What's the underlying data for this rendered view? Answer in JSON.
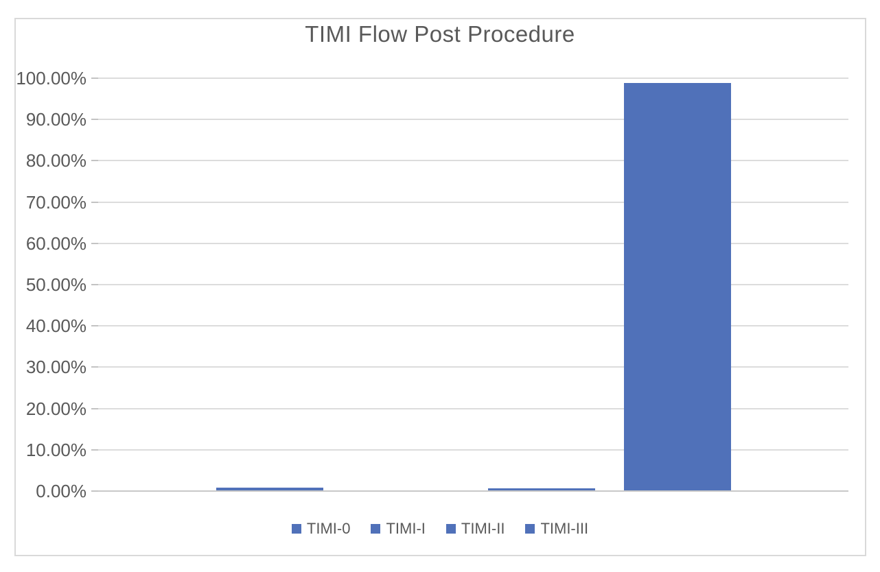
{
  "chart_data": {
    "type": "bar",
    "title": "TIMI Flow Post Procedure",
    "categories": [
      "TIMI-0",
      "TIMI-I",
      "TIMI-II",
      "TIMI-III"
    ],
    "values": [
      0.7,
      0.0,
      0.5,
      98.6
    ],
    "value_unit": "percent",
    "xlabel": "",
    "ylabel": "",
    "ylim": [
      0,
      100
    ],
    "y_tick_step": 10,
    "y_ticks": [
      {
        "value": 100,
        "label": "100.00%"
      },
      {
        "value": 90,
        "label": "90.00%"
      },
      {
        "value": 80,
        "label": "80.00%"
      },
      {
        "value": 70,
        "label": "70.00%"
      },
      {
        "value": 60,
        "label": "60.00%"
      },
      {
        "value": 50,
        "label": "50.00%"
      },
      {
        "value": 40,
        "label": "40.00%"
      },
      {
        "value": 30,
        "label": "30.00%"
      },
      {
        "value": 20,
        "label": "20.00%"
      },
      {
        "value": 10,
        "label": "10.00%"
      },
      {
        "value": 0,
        "label": "0.00%"
      }
    ],
    "grid": true,
    "legend_position": "bottom",
    "legend_labels": [
      "TIMI-0",
      "TIMI-I",
      "TIMI-II",
      "TIMI-III"
    ]
  },
  "colors": {
    "bar": "#5071B9",
    "text": "#595959",
    "gridline": "#DCDCDC",
    "axis_line": "#C8C8C8",
    "tick": "#C3C3C3",
    "frame_border": "#D9D9D9"
  }
}
